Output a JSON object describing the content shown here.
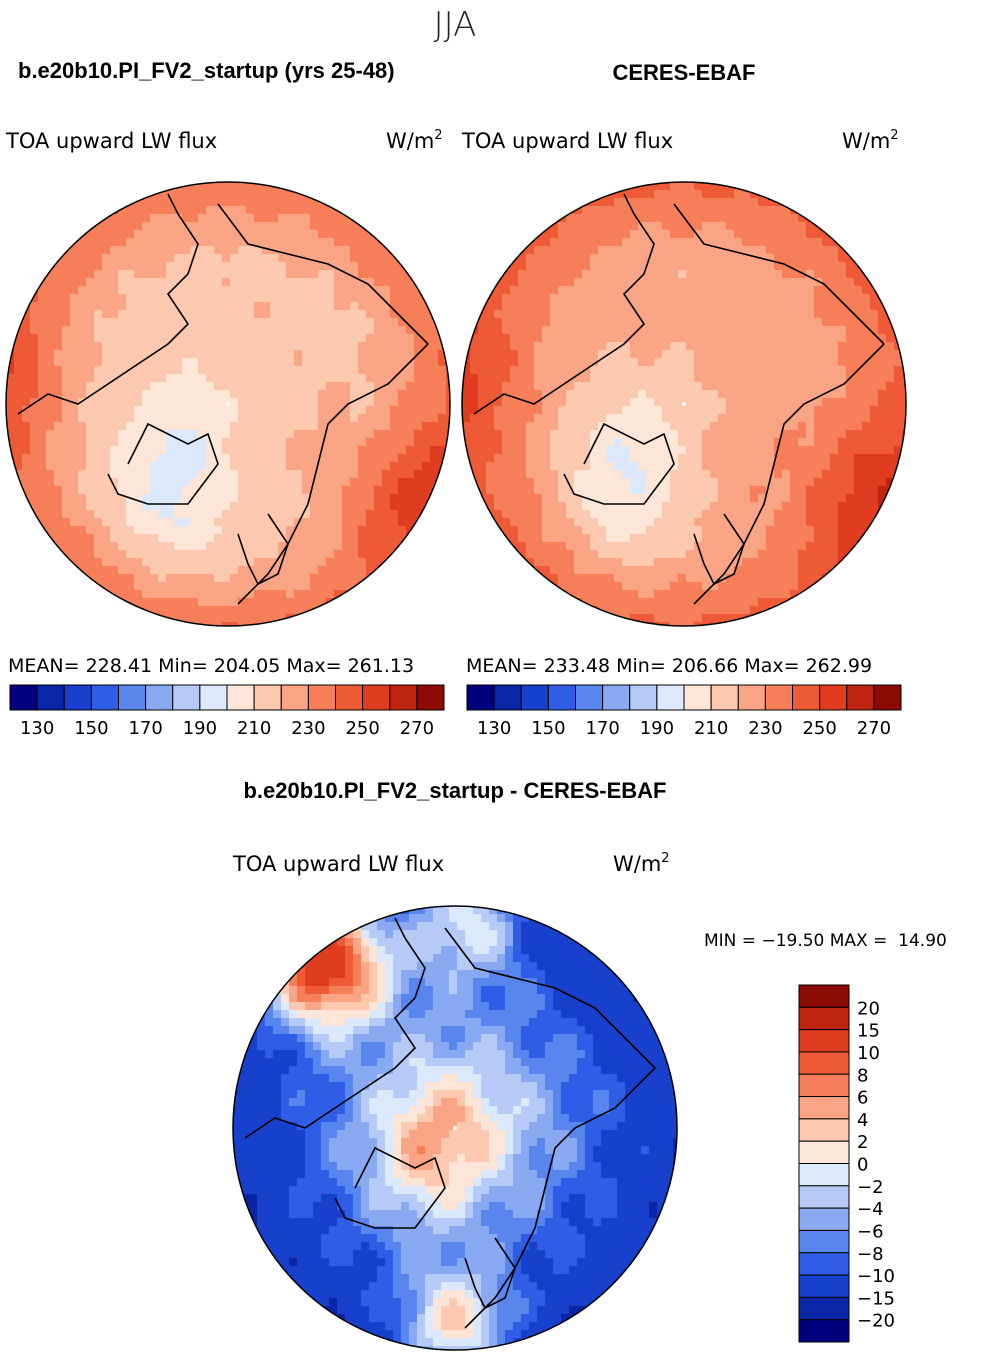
{
  "figure": {
    "season": "JJA",
    "difference_title": "b.e20b10.PI_FV2_startup - CERES-EBAF"
  },
  "colors": {
    "abs_levels": [
      "#00007f",
      "#0a26a6",
      "#1740cc",
      "#2f5de6",
      "#5985ee",
      "#8aa9f3",
      "#b5caf7",
      "#dce8fb",
      "#fde6d7",
      "#fcc9b0",
      "#f9a585",
      "#f67f5a",
      "#ee5a36",
      "#e03c1f",
      "#bf2410",
      "#8c0b04"
    ],
    "diff_levels": [
      "#00007f",
      "#0a26a6",
      "#1740cc",
      "#2f5de6",
      "#5985ee",
      "#8aa9f3",
      "#b5caf7",
      "#dce8fb",
      "#fde6d7",
      "#fcc9b0",
      "#f9a585",
      "#f67f5a",
      "#ee5a36",
      "#e03c1f",
      "#bf2410",
      "#8c0b04"
    ]
  },
  "chart_data": [
    {
      "type": "heatmap",
      "projection": "north-polar-stereographic",
      "title": "b.e20b10.PI_FV2_startup (yrs 25-48)",
      "left_label": "TOA upward LW flux",
      "units_base": "W/m",
      "units_exp": "2",
      "stats": {
        "mean_label": "MEAN=",
        "mean": "228.41",
        "min_label": "Min=",
        "min": "204.05",
        "max_label": "Max=",
        "max": "261.13"
      },
      "colorbar_ticks": [
        "130",
        "150",
        "170",
        "190",
        "210",
        "230",
        "250",
        "270"
      ],
      "colorbar_levels": [
        120,
        130,
        140,
        150,
        160,
        170,
        180,
        190,
        200,
        210,
        220,
        230,
        240,
        250,
        260,
        270,
        280
      ],
      "field": {
        "pole": 215,
        "mid": 222,
        "outer": 238,
        "greenland": 204,
        "edge": 258
      }
    },
    {
      "type": "heatmap",
      "projection": "north-polar-stereographic",
      "title": "CERES-EBAF",
      "left_label": "TOA upward LW flux",
      "units_base": "W/m",
      "units_exp": "2",
      "stats": {
        "mean_label": "MEAN=",
        "mean": "233.48",
        "min_label": "Min=",
        "min": "206.66",
        "max_label": "Max=",
        "max": "262.99"
      },
      "colorbar_ticks": [
        "130",
        "150",
        "170",
        "190",
        "210",
        "230",
        "250",
        "270"
      ],
      "colorbar_levels": [
        120,
        130,
        140,
        150,
        160,
        170,
        180,
        190,
        200,
        210,
        220,
        230,
        240,
        250,
        260,
        270,
        280
      ],
      "field": {
        "pole": 222,
        "mid": 228,
        "outer": 242,
        "greenland": 207,
        "edge": 262
      }
    },
    {
      "type": "heatmap",
      "projection": "north-polar-stereographic",
      "title": "b.e20b10.PI_FV2_startup - CERES-EBAF",
      "left_label": "TOA upward LW flux",
      "units_base": "W/m",
      "units_exp": "2",
      "stats": {
        "text": "MIN = −19.50 MAX =  14.90",
        "min": -19.5,
        "max": 14.9
      },
      "colorbar_labels": [
        "20",
        "15",
        "10",
        "8",
        "6",
        "4",
        "2",
        "0",
        "−2",
        "−4",
        "−6",
        "−8",
        "−10",
        "−15",
        "−20"
      ],
      "colorbar_levels": [
        -25,
        -20,
        -15,
        -10,
        -8,
        -6,
        -4,
        -2,
        0,
        2,
        4,
        6,
        8,
        10,
        15,
        20,
        25
      ]
    }
  ]
}
